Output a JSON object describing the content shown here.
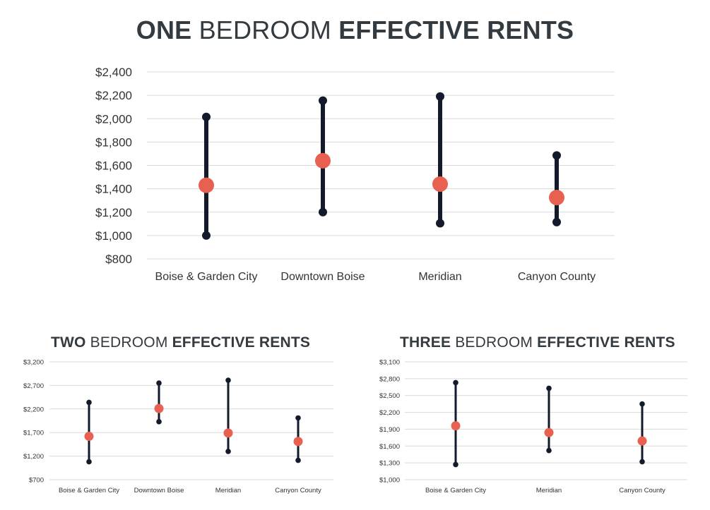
{
  "colors": {
    "range": "#121a2b",
    "median": "#e8604f",
    "grid": "#d9d9d9"
  },
  "chart_data": [
    {
      "type": "range-dot",
      "title_parts": [
        {
          "text": "ONE",
          "bold": true
        },
        {
          "text": " BEDROOM ",
          "bold": false
        },
        {
          "text": "EFFECTIVE RENTS",
          "bold": true
        }
      ],
      "categories": [
        "Boise & Garden City",
        "Downtown Boise",
        "Meridian",
        "Canyon County"
      ],
      "low": [
        1000,
        1200,
        1105,
        1115
      ],
      "high": [
        2015,
        2155,
        2190,
        1685
      ],
      "median": [
        1430,
        1640,
        1440,
        1325
      ],
      "yticks": [
        800,
        1000,
        1200,
        1400,
        1600,
        1800,
        2000,
        2200,
        2400
      ],
      "ytick_labels": [
        "$800",
        "$1,000",
        "$1,200",
        "$1,400",
        "$1,600",
        "$1,800",
        "$2,000",
        "$2,200",
        "$2,400"
      ],
      "ylim": [
        800,
        2400
      ],
      "grid": true,
      "legend": "none"
    },
    {
      "type": "range-dot",
      "title_parts": [
        {
          "text": "TWO",
          "bold": true
        },
        {
          "text": " BEDROOM ",
          "bold": false
        },
        {
          "text": "EFFECTIVE RENTS",
          "bold": true
        }
      ],
      "categories": [
        "Boise & Garden City",
        "Downtown Boise",
        "Meridian",
        "Canyon County"
      ],
      "low": [
        1080,
        1930,
        1300,
        1110
      ],
      "high": [
        2340,
        2750,
        2810,
        2010
      ],
      "median": [
        1620,
        2210,
        1690,
        1510
      ],
      "yticks": [
        700,
        1200,
        1700,
        2200,
        2700,
        3200
      ],
      "ytick_labels": [
        "$700",
        "$1,200",
        "$1,700",
        "$2,200",
        "$2,700",
        "$3,200"
      ],
      "ylim": [
        700,
        3200
      ],
      "grid": true,
      "legend": "none"
    },
    {
      "type": "range-dot",
      "title_parts": [
        {
          "text": "THREE",
          "bold": true
        },
        {
          "text": " BEDROOM ",
          "bold": false
        },
        {
          "text": "EFFECTIVE RENTS",
          "bold": true
        }
      ],
      "categories": [
        "Boise & Garden City",
        "Meridian",
        "Canyon County"
      ],
      "low": [
        1270,
        1520,
        1320
      ],
      "high": [
        2730,
        2630,
        2350
      ],
      "median": [
        1960,
        1840,
        1690
      ],
      "yticks": [
        1000,
        1300,
        1600,
        1900,
        2200,
        2500,
        2800,
        3100
      ],
      "ytick_labels": [
        "$1,000",
        "$1,300",
        "$1,600",
        "$1,900",
        "$2,200",
        "$2,500",
        "$2,800",
        "$3,100"
      ],
      "ylim": [
        1000,
        3100
      ],
      "grid": true,
      "legend": "none"
    }
  ]
}
